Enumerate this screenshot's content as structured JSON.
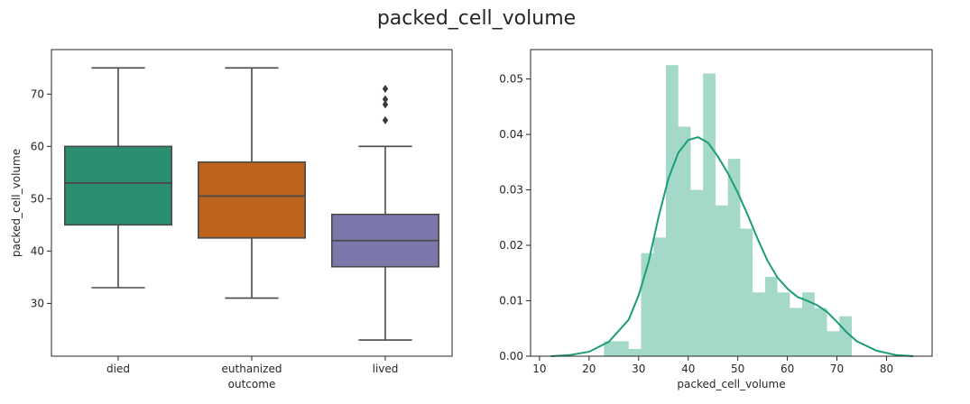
{
  "figure": {
    "title": "packed_cell_volume"
  },
  "chart_data": [
    {
      "type": "box",
      "xlabel": "outcome",
      "ylabel": "packed_cell_volume",
      "ylim": [
        19.9,
        78.5
      ],
      "yticks": [
        30,
        40,
        50,
        60,
        70
      ],
      "grid": false,
      "boxes": [
        {
          "category": "died",
          "color": "#1b9e77",
          "whisker_low": 33,
          "q1": 45,
          "median": 53,
          "q3": 60,
          "whisker_high": 75,
          "outliers": []
        },
        {
          "category": "euthanized",
          "color": "#d95f02",
          "whisker_low": 31,
          "q1": 42.5,
          "median": 50.5,
          "q3": 57,
          "whisker_high": 75,
          "outliers": []
        },
        {
          "category": "lived",
          "color": "#7570b3",
          "whisker_low": 23,
          "q1": 37,
          "median": 42,
          "q3": 47,
          "whisker_high": 60,
          "outliers": [
            65,
            68,
            69,
            71
          ]
        }
      ]
    },
    {
      "type": "histogram+kde",
      "xlabel": "packed_cell_volume",
      "ylabel": "",
      "xlim": [
        8.2,
        89.2
      ],
      "ylim": [
        0,
        0.0553
      ],
      "xticks": [
        10,
        20,
        30,
        40,
        50,
        60,
        70,
        80
      ],
      "yticks": [
        0.0,
        0.01,
        0.02,
        0.03,
        0.04,
        0.05
      ],
      "ytick_labels": [
        "0.00",
        "0.01",
        "0.02",
        "0.03",
        "0.04",
        "0.05"
      ],
      "color": "#1b9e77",
      "grid": false,
      "bins": [
        {
          "x0": 23.0,
          "x1": 25.5,
          "density": 0.0027
        },
        {
          "x0": 25.5,
          "x1": 28.0,
          "density": 0.0027
        },
        {
          "x0": 28.0,
          "x1": 30.5,
          "density": 0.0013
        },
        {
          "x0": 30.5,
          "x1": 33.0,
          "density": 0.0186
        },
        {
          "x0": 33.0,
          "x1": 35.5,
          "density": 0.0214
        },
        {
          "x0": 35.5,
          "x1": 38.0,
          "density": 0.0525
        },
        {
          "x0": 38.0,
          "x1": 40.5,
          "density": 0.0414
        },
        {
          "x0": 40.5,
          "x1": 43.0,
          "density": 0.03
        },
        {
          "x0": 43.0,
          "x1": 45.5,
          "density": 0.051
        },
        {
          "x0": 45.5,
          "x1": 48.0,
          "density": 0.0272
        },
        {
          "x0": 48.0,
          "x1": 50.5,
          "density": 0.0356
        },
        {
          "x0": 50.5,
          "x1": 53.0,
          "density": 0.023
        },
        {
          "x0": 53.0,
          "x1": 55.5,
          "density": 0.0115
        },
        {
          "x0": 55.5,
          "x1": 58.0,
          "density": 0.0143
        },
        {
          "x0": 58.0,
          "x1": 60.5,
          "density": 0.0115
        },
        {
          "x0": 60.5,
          "x1": 63.0,
          "density": 0.0087
        },
        {
          "x0": 63.0,
          "x1": 65.5,
          "density": 0.0115
        },
        {
          "x0": 65.5,
          "x1": 68.0,
          "density": 0.0087
        },
        {
          "x0": 68.0,
          "x1": 70.5,
          "density": 0.0045
        },
        {
          "x0": 70.5,
          "x1": 73.0,
          "density": 0.0072
        }
      ],
      "kde": {
        "x": [
          12.3,
          16,
          20,
          24,
          28,
          30,
          32,
          34,
          36,
          38,
          40,
          42,
          44,
          46,
          48,
          50,
          52,
          54,
          56,
          58,
          60,
          62,
          64,
          66,
          68,
          70,
          72,
          74,
          78,
          82,
          85.4
        ],
        "y": [
          0.0,
          0.0002,
          0.0008,
          0.0026,
          0.0066,
          0.011,
          0.017,
          0.025,
          0.032,
          0.0367,
          0.039,
          0.0395,
          0.0385,
          0.036,
          0.033,
          0.0295,
          0.0255,
          0.0212,
          0.0172,
          0.0142,
          0.0122,
          0.0107,
          0.01,
          0.0092,
          0.008,
          0.0062,
          0.0043,
          0.0027,
          0.001,
          0.0002,
          0.0
        ]
      }
    }
  ]
}
